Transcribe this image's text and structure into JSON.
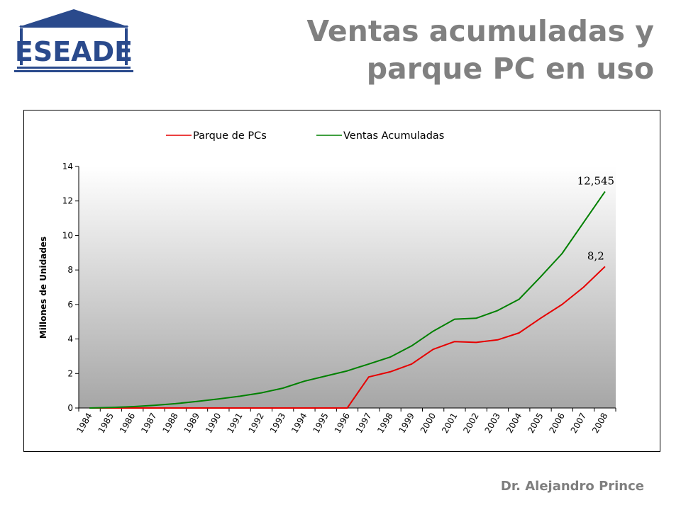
{
  "logo": {
    "text": "ESEADE",
    "color": "#2a4a8c"
  },
  "title": {
    "line1": "Ventas acumuladas y",
    "line2": "parque PC en uso",
    "color": "#808080"
  },
  "footer": {
    "author": "Dr. Alejandro Prince"
  },
  "chart_data": {
    "type": "line",
    "title": "",
    "xlabel": "",
    "ylabel": "Millones de Unidades",
    "ylim": [
      0,
      14
    ],
    "yticks": [
      0,
      2,
      4,
      6,
      8,
      10,
      12,
      14
    ],
    "grid": false,
    "legend_position": "top",
    "plot_background": "gradient white to gray",
    "categories": [
      "1984",
      "1985",
      "1986",
      "1987",
      "1988",
      "1989",
      "1990",
      "1991",
      "1992",
      "1993",
      "1994",
      "1995",
      "1996",
      "1997",
      "1998",
      "1999",
      "2000",
      "2001",
      "2002",
      "2003",
      "2004",
      "2005",
      "2006",
      "2007",
      "2008"
    ],
    "series": [
      {
        "name": "Parque de PCs",
        "color": "#e60000",
        "values": [
          0,
          0,
          0,
          0,
          0,
          0,
          0,
          0,
          0,
          0,
          0,
          0,
          0,
          1.8,
          2.1,
          2.55,
          3.4,
          3.85,
          3.8,
          3.95,
          4.35,
          5.2,
          6.0,
          7.0,
          8.2
        ]
      },
      {
        "name": "Ventas Acumuladas",
        "color": "#008000",
        "values": [
          0,
          0.03,
          0.08,
          0.15,
          0.25,
          0.38,
          0.52,
          0.68,
          0.88,
          1.15,
          1.55,
          1.85,
          2.15,
          2.55,
          2.95,
          3.6,
          4.45,
          5.15,
          5.2,
          5.65,
          6.3,
          7.6,
          8.95,
          10.75,
          12.545
        ]
      }
    ],
    "annotations": [
      {
        "text": "12,545",
        "series": "Ventas Acumuladas",
        "category": "2008"
      },
      {
        "text": "8,2",
        "series": "Parque de PCs",
        "category": "2008"
      }
    ]
  }
}
